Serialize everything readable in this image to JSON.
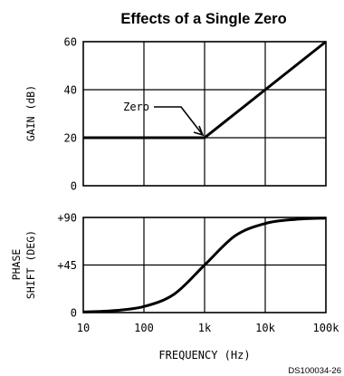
{
  "chart_data": {
    "title": "Effects of a Single Zero",
    "footnote": "DS100034-26",
    "xlabel": "FREQUENCY (Hz)",
    "x_scale": "log",
    "x_ticks": [
      10,
      100,
      1000,
      10000,
      100000
    ],
    "x_tick_labels": [
      "10",
      "100",
      "1k",
      "10k",
      "100k"
    ],
    "grid": true,
    "gain": {
      "type": "line",
      "ylabel": "GAIN (dB)",
      "ylim": [
        0,
        60
      ],
      "y_ticks": [
        0,
        20,
        40,
        60
      ],
      "y_tick_labels": [
        "0",
        "20",
        "40",
        "60"
      ],
      "x": [
        10,
        1000,
        100000
      ],
      "y": [
        20,
        20,
        60
      ],
      "annotation": {
        "text": "Zero",
        "x": 1000,
        "y": 20
      }
    },
    "phase": {
      "type": "line",
      "ylabel_lines": [
        "PHASE",
        "SHIFT (DEG)"
      ],
      "ylim": [
        0,
        90
      ],
      "y_ticks": [
        0,
        45,
        90
      ],
      "y_tick_labels": [
        "0",
        "+45",
        "+90"
      ],
      "x": [
        10,
        31.6,
        100,
        316,
        1000,
        3162,
        10000,
        31623,
        100000
      ],
      "y": [
        0.6,
        1.8,
        5.7,
        17.5,
        45,
        72.5,
        84.3,
        88.2,
        89.4
      ]
    }
  }
}
